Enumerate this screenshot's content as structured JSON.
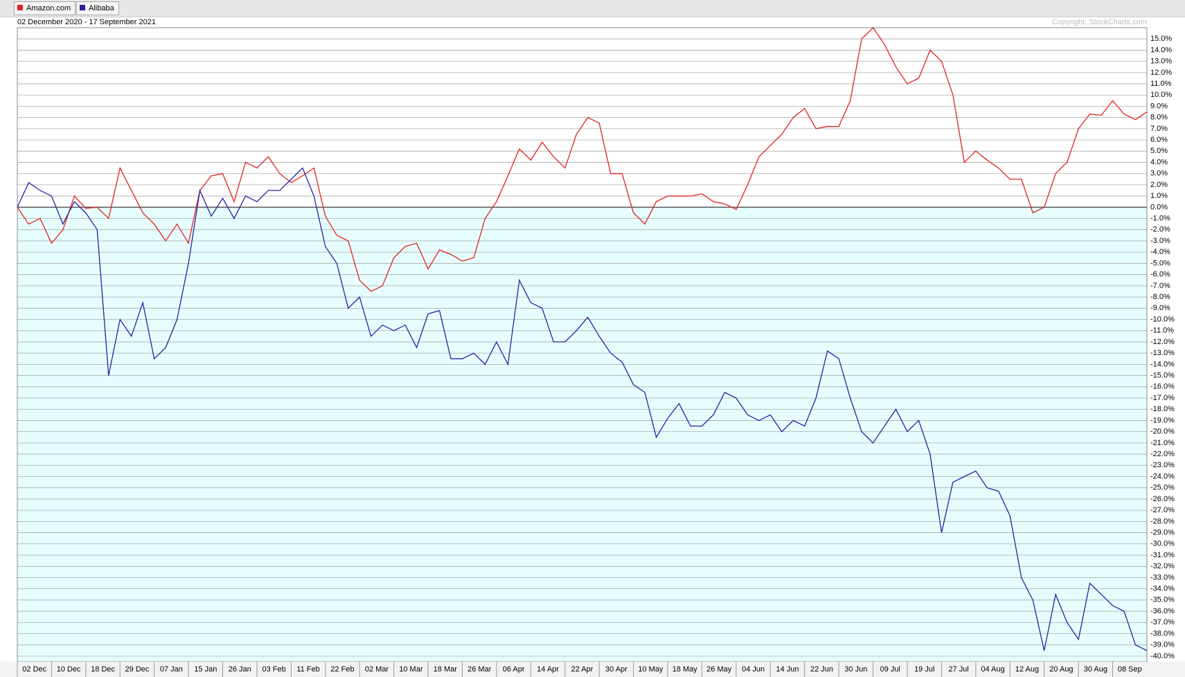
{
  "chart_data": {
    "type": "line",
    "subtitle": "02 December 2020 - 17 September 2021",
    "copyright": "Copyright, StockCharts.com",
    "categories": [
      "02 Dec",
      null,
      null,
      "10 Dec",
      null,
      null,
      "18 Dec",
      null,
      null,
      "29 Dec",
      null,
      null,
      "07 Jan",
      null,
      null,
      "15 Jan",
      null,
      null,
      "26 Jan",
      null,
      null,
      "03 Feb",
      null,
      null,
      "11 Feb",
      null,
      null,
      "22 Feb",
      null,
      null,
      "02 Mar",
      null,
      null,
      "10 Mar",
      null,
      null,
      "18 Mar",
      null,
      null,
      "26 Mar",
      null,
      null,
      "06 Apr",
      null,
      null,
      "14 Apr",
      null,
      null,
      "22 Apr",
      null,
      null,
      "30 Apr",
      null,
      null,
      "10 May",
      null,
      null,
      "18 May",
      null,
      null,
      "26 May",
      null,
      null,
      "04 Jun",
      null,
      null,
      "14 Jun",
      null,
      null,
      "22 Jun",
      null,
      null,
      "30 Jun",
      null,
      null,
      "09 Jul",
      null,
      null,
      "19 Jul",
      null,
      null,
      "27 Jul",
      null,
      null,
      "04 Aug",
      null,
      null,
      "12 Aug",
      null,
      null,
      "20 Aug",
      null,
      null,
      "30 Aug",
      null,
      null,
      "08 Sep",
      null,
      null,
      null
    ],
    "series": [
      {
        "name": "Amazon.com",
        "color": "#e02020",
        "values": [
          0,
          -1.5,
          -1.0,
          -3.2,
          -2.0,
          1.0,
          -0.1,
          0,
          -1.0,
          3.5,
          1.5,
          -0.5,
          -1.5,
          -3.0,
          -1.5,
          -3.2,
          1.5,
          2.8,
          3.0,
          0.5,
          4.0,
          3.5,
          4.5,
          3.0,
          2.2,
          2.8,
          3.5,
          -0.8,
          -2.5,
          -3.0,
          -6.5,
          -7.5,
          -7.0,
          -4.5,
          -3.5,
          -3.2,
          -5.5,
          -3.8,
          -4.2,
          -4.8,
          -4.5,
          -1.0,
          0.5,
          2.8,
          5.2,
          4.2,
          5.8,
          4.5,
          3.5,
          6.5,
          8.0,
          7.5,
          3.0,
          3.0,
          -0.5,
          -1.5,
          0.5,
          1.0,
          1.0,
          1.0,
          1.2,
          0.5,
          0.3,
          -0.2,
          2.0,
          4.5,
          5.5,
          6.5,
          8.0,
          8.8,
          7.0,
          7.2,
          7.2,
          9.5,
          15.0,
          16.0,
          14.5,
          12.5,
          11.0,
          11.5,
          14.0,
          13.0,
          10.0,
          4.0,
          5.0,
          4.2,
          3.5,
          2.5,
          2.5,
          -0.5,
          0,
          3.0,
          4.0,
          7.0,
          8.3,
          8.2,
          9.5,
          8.3,
          7.8,
          8.5
        ]
      },
      {
        "name": "Alibaba",
        "color": "#2a1ea0",
        "values": [
          0,
          2.2,
          1.5,
          1.0,
          -1.5,
          0.5,
          -0.5,
          -2.0,
          -15.0,
          -10.0,
          -11.5,
          -8.5,
          -13.5,
          -12.5,
          -10.0,
          -5.0,
          1.5,
          -0.8,
          0.8,
          -1.0,
          1.0,
          0.5,
          1.5,
          1.5,
          2.5,
          3.5,
          1.0,
          -3.5,
          -5.0,
          -9.0,
          -8.0,
          -11.5,
          -10.5,
          -11.0,
          -10.5,
          -12.5,
          -9.5,
          -9.2,
          -13.5,
          -13.5,
          -13.0,
          -14.0,
          -12.0,
          -14.0,
          -6.5,
          -8.5,
          -9.0,
          -12.0,
          -12.0,
          -11.0,
          -9.8,
          -11.5,
          -13.0,
          -13.8,
          -15.8,
          -16.5,
          -20.5,
          -18.8,
          -17.5,
          -19.5,
          -19.5,
          -18.5,
          -16.5,
          -17.0,
          -18.5,
          -19.0,
          -18.5,
          -20.0,
          -19.0,
          -19.5,
          -17.0,
          -12.8,
          -13.5,
          -17.0,
          -20.0,
          -21.0,
          -19.5,
          -18.0,
          -20.0,
          -19.0,
          -22.0,
          -29.0,
          -24.5,
          -24.0,
          -23.5,
          -25.0,
          -25.3,
          -27.5,
          -33.0,
          -35.0,
          -39.5,
          -34.5,
          -37.0,
          -38.5,
          -33.5,
          -34.5,
          -35.5,
          -36.0,
          -39.0,
          -39.5
        ]
      }
    ],
    "ylim": [
      -40.5,
      16.0
    ],
    "yticks": [
      {
        "value": 15,
        "label": "15.0%"
      },
      {
        "value": 14,
        "label": "14.0%"
      },
      {
        "value": 13,
        "label": "13.0%"
      },
      {
        "value": 12,
        "label": "12.0%"
      },
      {
        "value": 11,
        "label": "11.0%"
      },
      {
        "value": 10,
        "label": "10.0%"
      },
      {
        "value": 9,
        "label": "9.0%"
      },
      {
        "value": 8,
        "label": "8.0%"
      },
      {
        "value": 7,
        "label": "7.0%"
      },
      {
        "value": 6,
        "label": "6.0%"
      },
      {
        "value": 5,
        "label": "5.0%"
      },
      {
        "value": 4,
        "label": "4.0%"
      },
      {
        "value": 3,
        "label": "3.0%"
      },
      {
        "value": 2,
        "label": "2.0%"
      },
      {
        "value": 1,
        "label": "1.0%"
      },
      {
        "value": 0,
        "label": "0.0%"
      },
      {
        "value": -1,
        "label": "-1.0%"
      },
      {
        "value": -2,
        "label": "-2.0%"
      },
      {
        "value": -3,
        "label": "-3.0%"
      },
      {
        "value": -4,
        "label": "-4.0%"
      },
      {
        "value": -5,
        "label": "-5.0%"
      },
      {
        "value": -6,
        "label": "-6.0%"
      },
      {
        "value": -7,
        "label": "-7.0%"
      },
      {
        "value": -8,
        "label": "-8.0%"
      },
      {
        "value": -9,
        "label": "-9.0%"
      },
      {
        "value": -10,
        "label": "-10.0%"
      },
      {
        "value": -11,
        "label": "-11.0%"
      },
      {
        "value": -12,
        "label": "-12.0%"
      },
      {
        "value": -13,
        "label": "-13.0%"
      },
      {
        "value": -14,
        "label": "-14.0%"
      },
      {
        "value": -15,
        "label": "-15.0%"
      },
      {
        "value": -16,
        "label": "-16.0%"
      },
      {
        "value": -17,
        "label": "-17.0%"
      },
      {
        "value": -18,
        "label": "-18.0%"
      },
      {
        "value": -19,
        "label": "-19.0%"
      },
      {
        "value": -20,
        "label": "-20.0%"
      },
      {
        "value": -21,
        "label": "-21.0%"
      },
      {
        "value": -22,
        "label": "-22.0%"
      },
      {
        "value": -23,
        "label": "-23.0%"
      },
      {
        "value": -24,
        "label": "-24.0%"
      },
      {
        "value": -25,
        "label": "-25.0%"
      },
      {
        "value": -26,
        "label": "-26.0%"
      },
      {
        "value": -27,
        "label": "-27.0%"
      },
      {
        "value": -28,
        "label": "-28.0%"
      },
      {
        "value": -29,
        "label": "-29.0%"
      },
      {
        "value": -30,
        "label": "-30.0%"
      },
      {
        "value": -31,
        "label": "-31.0%"
      },
      {
        "value": -32,
        "label": "-32.0%"
      },
      {
        "value": -33,
        "label": "-33.0%"
      },
      {
        "value": -34,
        "label": "-34.0%"
      },
      {
        "value": -35,
        "label": "-35.0%"
      },
      {
        "value": -36,
        "label": "-36.0%"
      },
      {
        "value": -37,
        "label": "-37.0%"
      },
      {
        "value": -38,
        "label": "-38.0%"
      },
      {
        "value": -39,
        "label": "-39.0%"
      },
      {
        "value": -40,
        "label": "-40.0%"
      }
    ],
    "grid": true
  }
}
